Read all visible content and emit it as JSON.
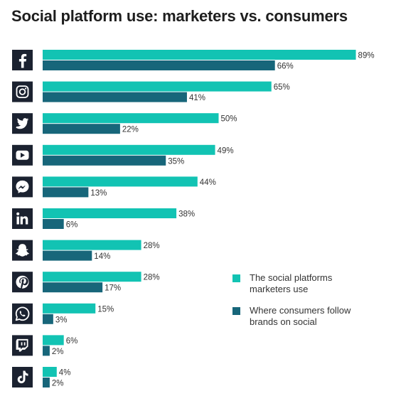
{
  "title": "Social platform use: marketers vs. consumers",
  "colors": {
    "marketers": "#12c3b3",
    "consumers": "#17667a",
    "icon_bg": "#1b2230",
    "text": "#333333"
  },
  "chart_data": {
    "type": "bar",
    "orientation": "horizontal",
    "title": "Social platform use: marketers vs. consumers",
    "categories": [
      "Facebook",
      "Instagram",
      "Twitter",
      "YouTube",
      "Messenger",
      "LinkedIn",
      "Snapchat",
      "Pinterest",
      "WhatsApp",
      "Twitch",
      "TikTok"
    ],
    "category_icons": [
      "facebook-icon",
      "instagram-icon",
      "twitter-icon",
      "youtube-icon",
      "messenger-icon",
      "linkedin-icon",
      "snapchat-icon",
      "pinterest-icon",
      "whatsapp-icon",
      "twitch-icon",
      "tiktok-icon"
    ],
    "series": [
      {
        "name": "The social platforms marketers use",
        "color": "#12c3b3",
        "values": [
          89,
          65,
          50,
          49,
          44,
          38,
          28,
          28,
          15,
          6,
          4
        ],
        "labels": [
          "89%",
          "65%",
          "50%",
          "49%",
          "44%",
          "38%",
          "28%",
          "28%",
          "15%",
          "6%",
          "4%"
        ]
      },
      {
        "name": "Where consumers follow brands on social",
        "color": "#17667a",
        "values": [
          66,
          41,
          22,
          35,
          13,
          6,
          14,
          17,
          3,
          2,
          2
        ],
        "labels": [
          "66%",
          "41%",
          "22%",
          "35%",
          "13%",
          "6%",
          "14%",
          "17%",
          "3%",
          "2%",
          "2%"
        ]
      }
    ],
    "xlim": [
      0,
      100
    ],
    "grid": false,
    "legend_position": "right"
  },
  "legend": [
    {
      "label": "The social platforms marketers use",
      "color": "#12c3b3"
    },
    {
      "label": "Where consumers follow brands on social",
      "color": "#17667a"
    }
  ]
}
